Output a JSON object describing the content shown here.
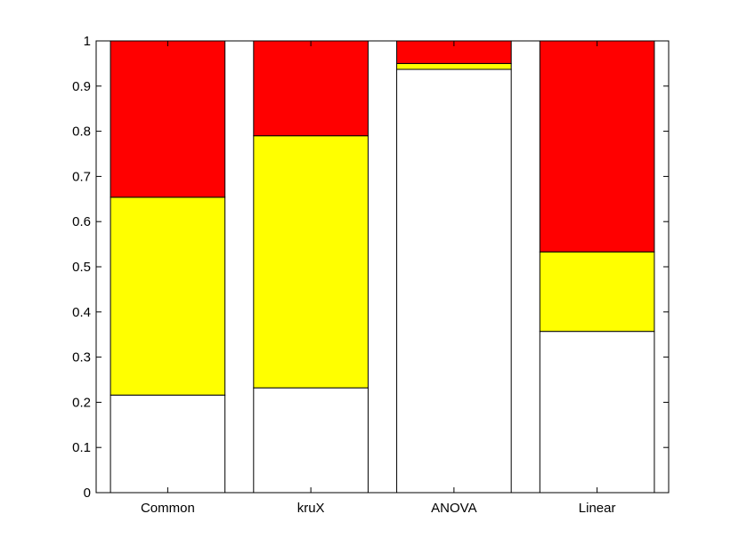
{
  "chart_data": {
    "type": "bar",
    "stacked": true,
    "categories": [
      "Common",
      "kruX",
      "ANOVA",
      "Linear"
    ],
    "series": [
      {
        "color": "#ffffff",
        "values": [
          0.216,
          0.232,
          0.937,
          0.357
        ]
      },
      {
        "color": "#ffff00",
        "values": [
          0.438,
          0.558,
          0.013,
          0.176
        ]
      },
      {
        "color": "#ff0000",
        "values": [
          0.346,
          0.21,
          0.05,
          0.467
        ]
      }
    ],
    "ylim": [
      0,
      1
    ],
    "yticks": [
      "0",
      "0.1",
      "0.2",
      "0.3",
      "0.4",
      "0.5",
      "0.6",
      "0.7",
      "0.8",
      "0.9",
      "1"
    ],
    "grid": false,
    "title": "",
    "xlabel": "",
    "ylabel": ""
  }
}
